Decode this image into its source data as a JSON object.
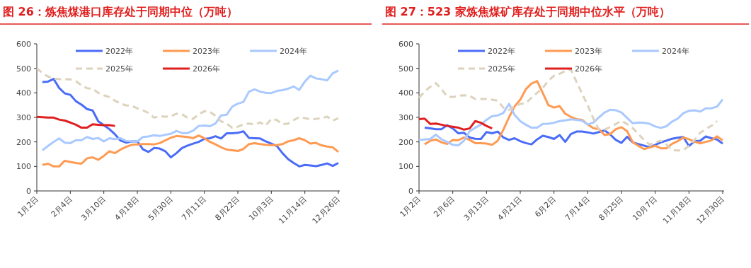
{
  "chart_data": [
    {
      "type": "line",
      "title": "图 26：炼焦煤港口库存处于同期中位（万吨）",
      "categories": [
        "1月2日",
        null,
        null,
        null,
        null,
        null,
        "2月4日",
        null,
        null,
        null,
        null,
        null,
        "3月10日",
        null,
        null,
        null,
        null,
        null,
        "4月18日",
        null,
        null,
        null,
        null,
        null,
        "5月30日",
        null,
        null,
        null,
        null,
        null,
        "7月11日",
        null,
        null,
        null,
        null,
        null,
        "8月22日",
        null,
        null,
        null,
        null,
        null,
        "10月3日",
        null,
        null,
        null,
        null,
        null,
        "11月14日",
        null,
        null,
        null,
        null,
        null,
        "12月26日"
      ],
      "ylim": [
        0,
        600
      ],
      "yticks": [
        0,
        100,
        200,
        300,
        400,
        500,
        600
      ],
      "legend": "top",
      "grid": false,
      "series": [
        {
          "name": "2022年",
          "color": "#4a6cf7",
          "values": [
            null,
            444,
            446,
            457,
            420,
            398,
            392,
            366,
            352,
            334,
            328,
            284,
            268,
            252,
            231,
            205,
            197,
            202,
            202,
            170,
            159,
            175,
            173,
            162,
            137,
            154,
            175,
            185,
            193,
            200,
            212,
            215,
            223,
            214,
            235,
            235,
            237,
            243,
            216,
            215,
            214,
            202,
            193,
            183,
            154,
            130,
            114,
            100,
            106,
            104,
            101,
            106,
            112,
            102,
            114
          ]
        },
        {
          "name": "2023年",
          "color": "#ff9a52",
          "values": [
            null,
            106,
            111,
            100,
            100,
            123,
            118,
            114,
            111,
            133,
            137,
            127,
            143,
            162,
            154,
            169,
            180,
            188,
            190,
            191,
            191,
            190,
            195,
            206,
            217,
            224,
            222,
            220,
            215,
            226,
            215,
            200,
            190,
            178,
            169,
            166,
            163,
            171,
            191,
            195,
            191,
            188,
            187,
            187,
            191,
            202,
            207,
            215,
            207,
            193,
            196,
            186,
            181,
            178,
            159
          ]
        },
        {
          "name": "2024年",
          "color": "#a9c9ff",
          "values": [
            null,
            166,
            183,
            200,
            214,
            197,
            195,
            207,
            207,
            220,
            212,
            216,
            202,
            215,
            211,
            215,
            204,
            202,
            202,
            220,
            222,
            227,
            224,
            229,
            233,
            245,
            236,
            236,
            246,
            265,
            267,
            264,
            275,
            308,
            311,
            344,
            356,
            363,
            405,
            414,
            405,
            400,
            399,
            408,
            411,
            417,
            426,
            412,
            446,
            470,
            459,
            456,
            451,
            480,
            491
          ]
        },
        {
          "name": "2025年",
          "color": "#ddd3bd",
          "line_style": "dashed",
          "values": [
            501,
            480,
            467,
            458,
            456,
            456,
            455,
            448,
            431,
            419,
            417,
            400,
            390,
            383,
            368,
            356,
            349,
            347,
            337,
            329,
            318,
            299,
            305,
            303,
            305,
            315,
            313,
            298,
            294,
            313,
            325,
            323,
            306,
            284,
            275,
            257,
            262,
            272,
            275,
            272,
            279,
            267,
            294,
            289,
            272,
            275,
            289,
            301,
            297,
            292,
            294,
            297,
            303,
            287,
            297
          ]
        },
        {
          "name": "2026年",
          "color": "#e02020",
          "values": [
            302,
            301,
            299,
            299,
            291,
            287,
            279,
            270,
            258,
            258,
            272,
            270,
            268,
            268,
            265,
            null,
            null,
            null,
            null,
            null,
            null,
            null,
            null,
            null,
            null,
            null,
            null,
            null,
            null,
            null,
            null,
            null,
            null,
            null,
            null,
            null,
            null,
            null,
            null,
            null,
            null,
            null,
            null,
            null,
            null,
            null,
            null,
            null,
            null,
            null,
            null,
            null,
            null,
            null,
            null
          ]
        }
      ]
    },
    {
      "type": "line",
      "title": "图 27：523 家炼焦煤矿库存处于同期中位水平（万吨）",
      "categories": [
        "1月2日",
        null,
        null,
        null,
        null,
        null,
        "2月6日",
        null,
        null,
        null,
        null,
        null,
        "3月13日",
        null,
        null,
        null,
        null,
        null,
        "4月21日",
        null,
        null,
        null,
        null,
        null,
        "6月2日",
        null,
        null,
        null,
        null,
        null,
        "7月14日",
        null,
        null,
        null,
        null,
        null,
        "8月25日",
        null,
        null,
        null,
        null,
        null,
        "10月7日",
        null,
        null,
        null,
        null,
        null,
        "11月18日",
        null,
        null,
        null,
        null,
        null,
        "12月30日"
      ],
      "ylim": [
        0,
        600
      ],
      "yticks": [
        0,
        100,
        200,
        300,
        400,
        500,
        600
      ],
      "legend": "top",
      "grid": false,
      "series": [
        {
          "name": "2022年",
          "color": "#4a6cf7",
          "values": [
            null,
            258,
            255,
            252,
            252,
            268,
            255,
            235,
            237,
            218,
            213,
            212,
            240,
            235,
            242,
            218,
            208,
            215,
            203,
            195,
            190,
            210,
            225,
            220,
            212,
            228,
            200,
            232,
            242,
            242,
            239,
            234,
            240,
            247,
            230,
            208,
            196,
            221,
            198,
            191,
            185,
            178,
            188,
            198,
            205,
            213,
            217,
            220,
            183,
            203,
            205,
            222,
            215,
            210,
            193
          ]
        },
        {
          "name": "2023年",
          "color": "#ff9a52",
          "values": [
            null,
            190,
            205,
            210,
            198,
            192,
            208,
            207,
            218,
            208,
            195,
            195,
            193,
            188,
            205,
            250,
            300,
            345,
            372,
            415,
            438,
            448,
            400,
            350,
            340,
            346,
            315,
            302,
            293,
            290,
            271,
            256,
            252,
            228,
            232,
            252,
            260,
            244,
            199,
            184,
            171,
            177,
            184,
            174,
            174,
            192,
            203,
            218,
            211,
            201,
            194,
            200,
            206,
            223,
            206
          ]
        },
        {
          "name": "2024年",
          "color": "#a9c9ff",
          "values": [
            208,
            210,
            212,
            230,
            210,
            200,
            188,
            186,
            205,
            243,
            258,
            270,
            290,
            305,
            308,
            318,
            355,
            310,
            285,
            270,
            258,
            258,
            273,
            274,
            278,
            285,
            288,
            292,
            290,
            286,
            271,
            279,
            300,
            320,
            331,
            329,
            320,
            298,
            276,
            279,
            278,
            274,
            263,
            257,
            264,
            283,
            295,
            317,
            327,
            329,
            324,
            337,
            337,
            344,
            373
          ]
        },
        {
          "name": "2025年",
          "color": "#ddd3bd",
          "line_style": "dashed",
          "values": [
            380,
            405,
            425,
            440,
            415,
            385,
            383,
            388,
            390,
            388,
            375,
            375,
            375,
            372,
            368,
            340,
            330,
            345,
            355,
            358,
            380,
            400,
            420,
            450,
            470,
            478,
            489,
            496,
            445,
            397,
            349,
            295,
            250,
            250,
            261,
            273,
            286,
            273,
            257,
            232,
            208,
            189,
            198,
            205,
            189,
            166,
            165,
            166,
            184,
            208,
            237,
            252,
            266,
            285,
            null
          ]
        },
        {
          "name": "2026年",
          "color": "#e02020",
          "values": [
            293,
            295,
            273,
            275,
            270,
            265,
            262,
            258,
            250,
            255,
            285,
            278,
            265,
            255,
            null,
            null,
            null,
            null,
            null,
            null,
            null,
            null,
            null,
            null,
            null,
            null,
            null,
            null,
            null,
            null,
            null,
            null,
            null,
            null,
            null,
            null,
            null,
            null,
            null,
            null,
            null,
            null,
            null,
            null,
            null,
            null,
            null,
            null,
            null,
            null,
            null,
            null,
            null,
            null,
            null
          ]
        }
      ]
    }
  ]
}
